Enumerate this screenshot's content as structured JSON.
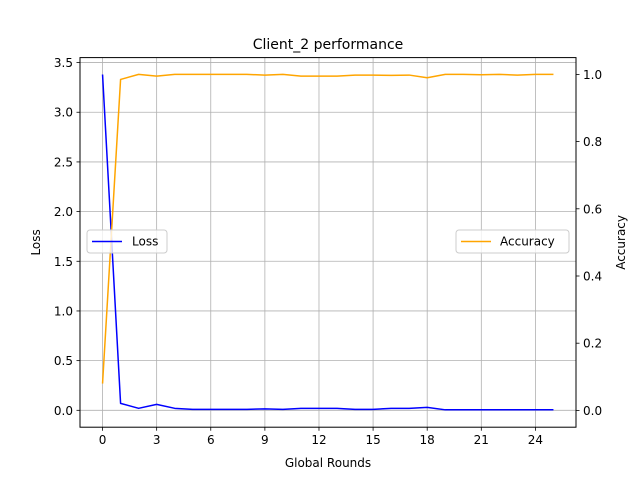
{
  "chart_data": {
    "type": "line",
    "title": "Client_2 performance",
    "xlabel": "Global Rounds",
    "ylabel_left": "Loss",
    "ylabel_right": "Accuracy",
    "xlim": [
      -1.25,
      26.25
    ],
    "ylim_left": [
      -0.17,
      3.55
    ],
    "ylim_right": [
      -0.05,
      1.05
    ],
    "xticks": [
      0,
      3,
      6,
      9,
      12,
      15,
      18,
      21,
      24
    ],
    "yticks_left": [
      0.0,
      0.5,
      1.0,
      1.5,
      2.0,
      2.5,
      3.0,
      3.5
    ],
    "yticks_right": [
      0.0,
      0.2,
      0.4,
      0.6,
      0.8,
      1.0
    ],
    "grid": true,
    "x": [
      0,
      1,
      2,
      3,
      4,
      5,
      6,
      7,
      8,
      9,
      10,
      11,
      12,
      13,
      14,
      15,
      16,
      17,
      18,
      19,
      20,
      21,
      22,
      23,
      24,
      25
    ],
    "series": [
      {
        "name": "Loss",
        "axis": "left",
        "color": "#0000ff",
        "legend_position": "center-left",
        "values": [
          3.38,
          0.07,
          0.02,
          0.06,
          0.02,
          0.01,
          0.01,
          0.01,
          0.01,
          0.015,
          0.01,
          0.02,
          0.02,
          0.02,
          0.01,
          0.01,
          0.02,
          0.02,
          0.03,
          0.005,
          0.005,
          0.005,
          0.005,
          0.005,
          0.005,
          0.005
        ]
      },
      {
        "name": "Accuracy",
        "axis": "right",
        "color": "#ffa500",
        "legend_position": "center-right",
        "values": [
          0.08,
          0.985,
          1.0,
          0.995,
          1.0,
          1.0,
          1.0,
          1.0,
          1.0,
          0.998,
          1.0,
          0.995,
          0.995,
          0.995,
          0.998,
          0.998,
          0.997,
          0.998,
          0.99,
          1.0,
          1.0,
          0.999,
          1.0,
          0.998,
          1.0,
          1.0
        ]
      }
    ]
  }
}
